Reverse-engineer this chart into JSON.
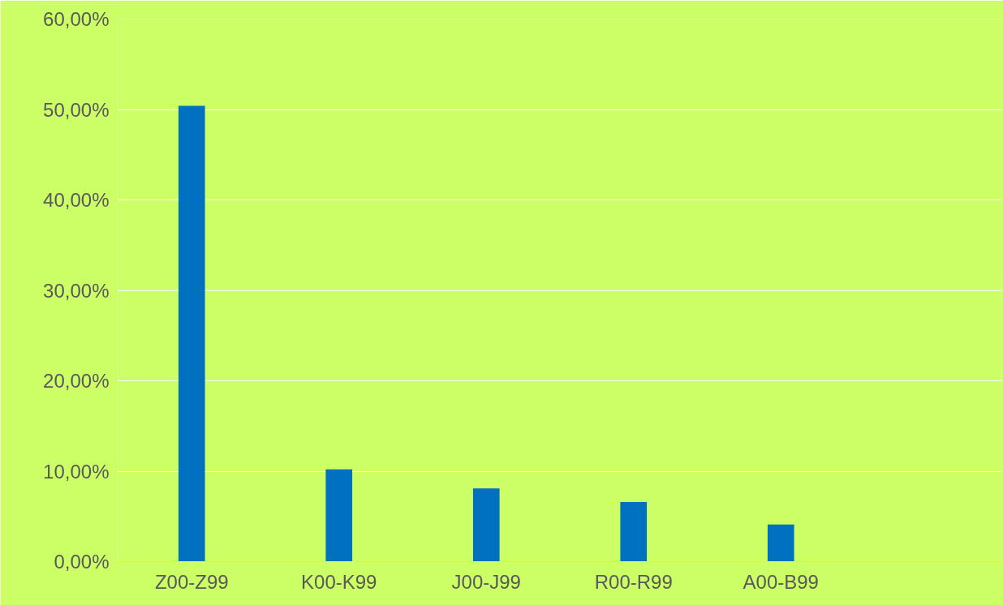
{
  "chart_data": {
    "type": "bar",
    "categories": [
      "Z00-Z99",
      "K00-K99",
      "J00-J99",
      "R00-R99",
      "A00-B99",
      null
    ],
    "values": [
      50.4,
      10.2,
      8.1,
      6.6,
      4.1,
      null
    ],
    "color": "#0070c0",
    "ylim": [
      0,
      60
    ],
    "yticks": [
      {
        "value": 0,
        "label": "0,00%"
      },
      {
        "value": 10,
        "label": "10,00%"
      },
      {
        "value": 20,
        "label": "20,00%"
      },
      {
        "value": 30,
        "label": "30,00%"
      },
      {
        "value": 40,
        "label": "40,00%"
      },
      {
        "value": 50,
        "label": "50,00%"
      },
      {
        "value": 60,
        "label": "60,00%"
      }
    ],
    "grid": "y"
  }
}
